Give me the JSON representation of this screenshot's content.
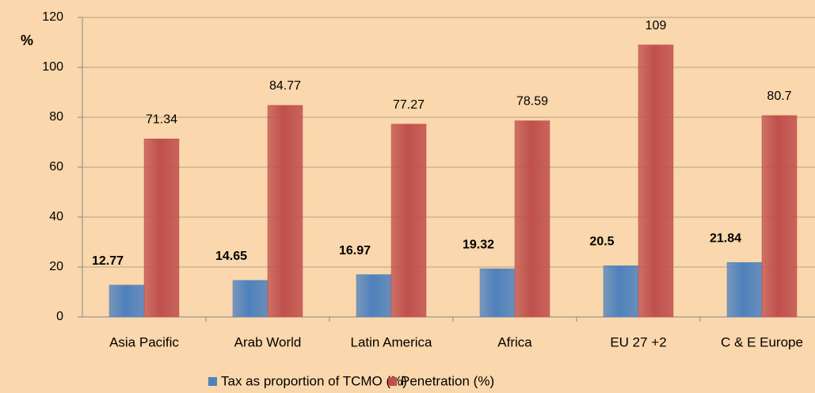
{
  "chart_data": {
    "type": "bar",
    "y_axis_label": "%",
    "categories": [
      "Asia Pacific",
      "Arab World",
      "Latin America",
      "Africa",
      "EU 27 +2",
      "C & E Europe"
    ],
    "series": [
      {
        "name": "Tax as proportion of TCMO (%)",
        "color": "#4f81bd",
        "values": [
          12.77,
          14.65,
          16.97,
          19.32,
          20.5,
          21.84
        ]
      },
      {
        "name": "Penetration (%)",
        "color": "#c0504d",
        "values": [
          71.34,
          84.77,
          77.27,
          78.59,
          109,
          80.7
        ]
      }
    ],
    "ylim": [
      0,
      120
    ],
    "yticks": [
      0,
      20,
      40,
      60,
      80,
      100,
      120
    ],
    "grid": true,
    "legend": "bottom"
  }
}
